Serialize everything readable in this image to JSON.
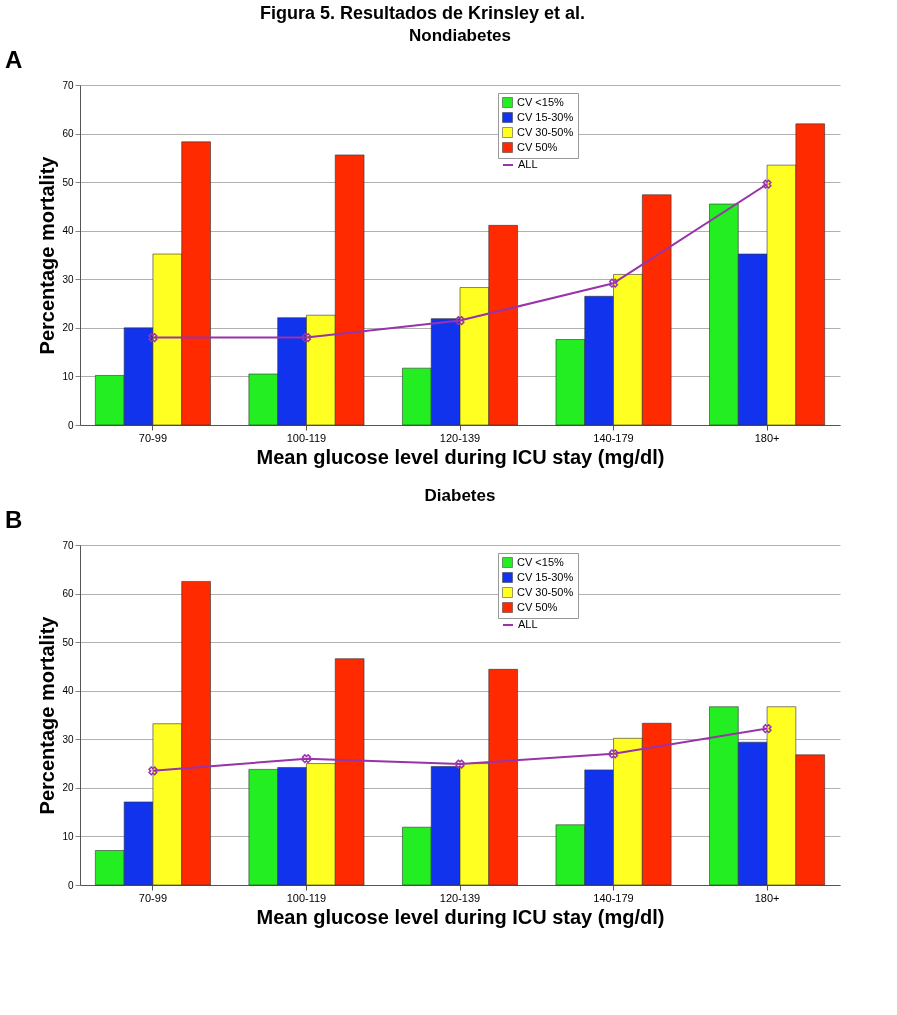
{
  "chart_data": [
    {
      "type": "bar",
      "title": "Nondiabetes",
      "xlabel": "Mean glucose level during ICU stay (mg/dl)",
      "ylabel": "Percentage mortality",
      "annotations": [
        "Figura 5. Resultados de Krinsley et al.",
        "A"
      ],
      "categories": [
        "70-99",
        "100-119",
        "120-139",
        "140-179",
        "180+"
      ],
      "series": [
        {
          "name": "CV <15%",
          "color": "#22ee22",
          "values": [
            10.2,
            10.5,
            11.7,
            17.6,
            45.5
          ]
        },
        {
          "name": "CV 15-30%",
          "color": "#1133ee",
          "values": [
            20.0,
            22.1,
            21.9,
            26.5,
            35.2
          ]
        },
        {
          "name": "CV 30-50%",
          "color": "#ffff22",
          "values": [
            35.2,
            22.6,
            28.3,
            31.0,
            53.5
          ]
        },
        {
          "name": "CV 50%",
          "color": "#ff2a00",
          "values": [
            58.3,
            55.6,
            41.1,
            47.4,
            62.0
          ]
        },
        {
          "name": "ALL",
          "type": "line",
          "color": "#9933aa",
          "marker": "cross",
          "values": [
            18.0,
            18.0,
            21.5,
            29.2,
            49.6
          ]
        }
      ],
      "ylim": [
        0,
        70
      ],
      "yticks": [
        0,
        10,
        20,
        30,
        40,
        50,
        60,
        70
      ],
      "grid": "y",
      "legend": "top right"
    },
    {
      "type": "bar",
      "title": "Diabetes",
      "xlabel": "Mean glucose level during ICU stay (mg/dl)",
      "ylabel": "Percentage mortality",
      "annotations": [
        "B"
      ],
      "categories": [
        "70-99",
        "100-119",
        "120-139",
        "140-179",
        "180+"
      ],
      "series": [
        {
          "name": "CV <15%",
          "color": "#22ee22",
          "values": [
            7.1,
            23.8,
            11.9,
            12.4,
            36.7
          ]
        },
        {
          "name": "CV 15-30%",
          "color": "#1133ee",
          "values": [
            17.1,
            24.2,
            24.4,
            23.7,
            29.4
          ]
        },
        {
          "name": "CV 30-50%",
          "color": "#ffff22",
          "values": [
            33.2,
            25.0,
            25.0,
            30.2,
            36.7
          ]
        },
        {
          "name": "CV 50%",
          "color": "#ff2a00",
          "values": [
            62.5,
            46.6,
            44.4,
            33.3,
            26.8
          ]
        },
        {
          "name": "ALL",
          "type": "line",
          "color": "#9933aa",
          "marker": "cross",
          "values": [
            23.5,
            26.0,
            24.9,
            27.0,
            32.2
          ]
        }
      ],
      "ylim": [
        0,
        70
      ],
      "yticks": [
        0,
        10,
        20,
        30,
        40,
        50,
        60,
        70
      ],
      "grid": "y",
      "legend": "top right"
    }
  ]
}
